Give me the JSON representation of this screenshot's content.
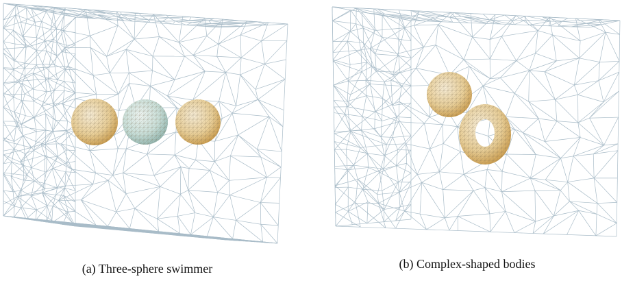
{
  "figure": {
    "panels": [
      {
        "caption": "(a) Three-sphere swimmer"
      },
      {
        "caption": "(b) Complex-shaped bodies"
      }
    ]
  }
}
